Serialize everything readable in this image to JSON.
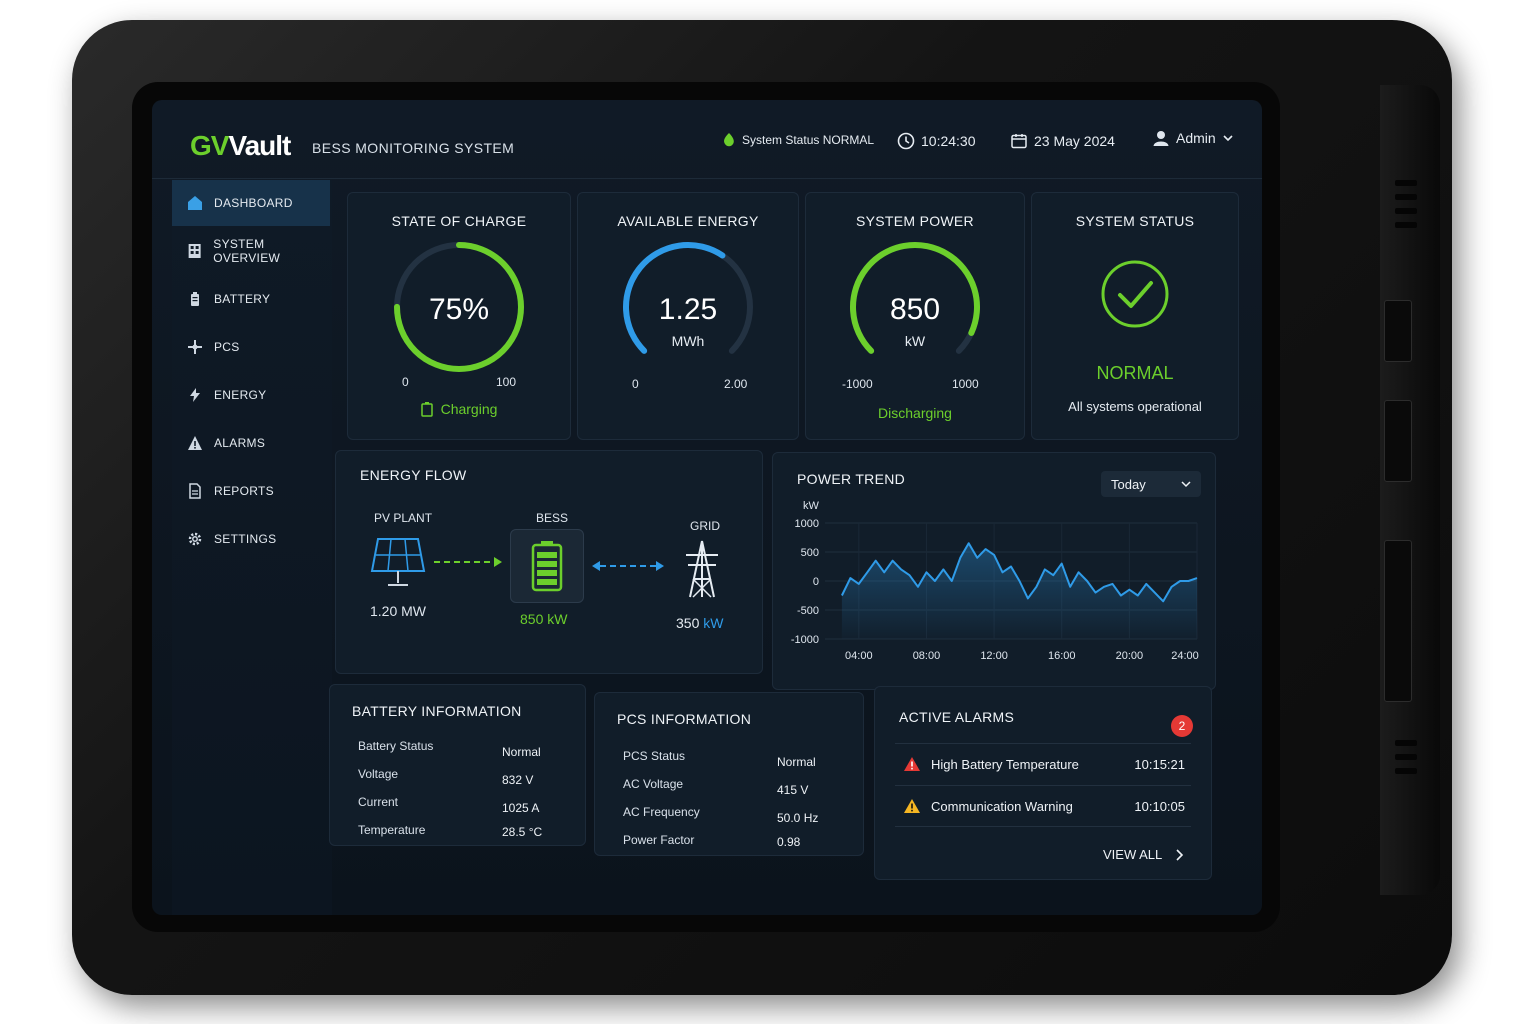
{
  "header": {
    "logo_g": "GV",
    "logo_text": "Vault",
    "system_title": "BESS MONITORING SYSTEM",
    "system_status": "System Status NORMAL",
    "time": "10:24:30",
    "date": "23 May 2024",
    "user": "Admin"
  },
  "sidebar": {
    "items": [
      {
        "label": "DASHBOARD",
        "icon": "home-icon"
      },
      {
        "label": "SYSTEM OVERVIEW",
        "icon": "building-icon"
      },
      {
        "label": "BATTERY",
        "icon": "battery-icon"
      },
      {
        "label": "PCS",
        "icon": "pcs-icon"
      },
      {
        "label": "ENERGY",
        "icon": "lightning-icon"
      },
      {
        "label": "ALARMS",
        "icon": "warning-icon"
      },
      {
        "label": "REPORTS",
        "icon": "document-icon"
      },
      {
        "label": "SETTINGS",
        "icon": "gear-icon"
      }
    ]
  },
  "soc": {
    "title": "STATE OF CHARGE",
    "value": "75%",
    "fraction": 0.75,
    "min": "0",
    "max": "100",
    "status": "Charging"
  },
  "energy": {
    "title": "AVAILABLE ENERGY",
    "value": "1.25",
    "unit": "MWh",
    "fraction": 0.625,
    "min": "0",
    "max": "2.00"
  },
  "power": {
    "title": "SYSTEM POWER",
    "value": "850",
    "unit": "kW",
    "fraction": 0.925,
    "min": "-1000",
    "max": "1000",
    "status": "Discharging"
  },
  "status": {
    "title": "SYSTEM STATUS",
    "state": "NORMAL",
    "message": "All systems operational"
  },
  "flow": {
    "title": "ENERGY FLOW",
    "pv_label": "PV PLANT",
    "pv_value": "1.20 MW",
    "bess_label": "BESS",
    "bess_value": "850 kW",
    "grid_label": "GRID",
    "grid_value": "350",
    "grid_unit": "kW"
  },
  "trend": {
    "title": "POWER TREND",
    "range": "Today"
  },
  "chart_data": {
    "type": "line",
    "ylabel": "kW",
    "ylim": [
      -1000,
      1000
    ],
    "yticks": [
      "1000",
      "500",
      "0",
      "-500",
      "-1000"
    ],
    "xticks": [
      "04:00",
      "08:00",
      "12:00",
      "16:00",
      "20:00",
      "24:00"
    ],
    "x": [
      3,
      3.5,
      4,
      4.5,
      5,
      5.5,
      6,
      6.5,
      7,
      7.5,
      8,
      8.5,
      9,
      9.5,
      10,
      10.5,
      11,
      11.5,
      12,
      12.5,
      13,
      13.5,
      14,
      14.5,
      15,
      15.5,
      16,
      16.5,
      17,
      17.5,
      18,
      18.5,
      19,
      19.5,
      20,
      20.5,
      21,
      21.5,
      22,
      22.5,
      23,
      23.5,
      24
    ],
    "values": [
      -250,
      50,
      -50,
      150,
      350,
      150,
      350,
      200,
      100,
      -100,
      150,
      0,
      200,
      0,
      400,
      650,
      400,
      550,
      450,
      150,
      250,
      0,
      -300,
      -100,
      200,
      100,
      300,
      -100,
      150,
      0,
      -200,
      -100,
      -50,
      -250,
      -150,
      -250,
      -50,
      -200,
      -350,
      -100,
      0,
      0,
      50
    ]
  },
  "battery": {
    "title": "BATTERY INFORMATION",
    "rows": [
      {
        "label": "Battery Status",
        "value": "Normal"
      },
      {
        "label": "Voltage",
        "value": "832 V"
      },
      {
        "label": "Current",
        "value": "1025 A"
      },
      {
        "label": "Temperature",
        "value": "28.5 °C"
      }
    ]
  },
  "pcs": {
    "title": "PCS INFORMATION",
    "rows": [
      {
        "label": "PCS Status",
        "value": "Normal"
      },
      {
        "label": "AC Voltage",
        "value": "415 V"
      },
      {
        "label": "AC Frequency",
        "value": "50.0 Hz"
      },
      {
        "label": "Power Factor",
        "value": "0.98"
      }
    ]
  },
  "alarms": {
    "title": "ACTIVE ALARMS",
    "count": "2",
    "items": [
      {
        "label": "High Battery Temperature",
        "time": "10:15:21",
        "color": "#e53935"
      },
      {
        "label": "Communication Warning",
        "time": "10:10:05",
        "color": "#f5b623"
      }
    ],
    "view_all": "VIEW ALL"
  },
  "colors": {
    "green": "#6ccf2c",
    "blue": "#2f9be8",
    "red": "#e53935",
    "amber": "#f5b623"
  }
}
